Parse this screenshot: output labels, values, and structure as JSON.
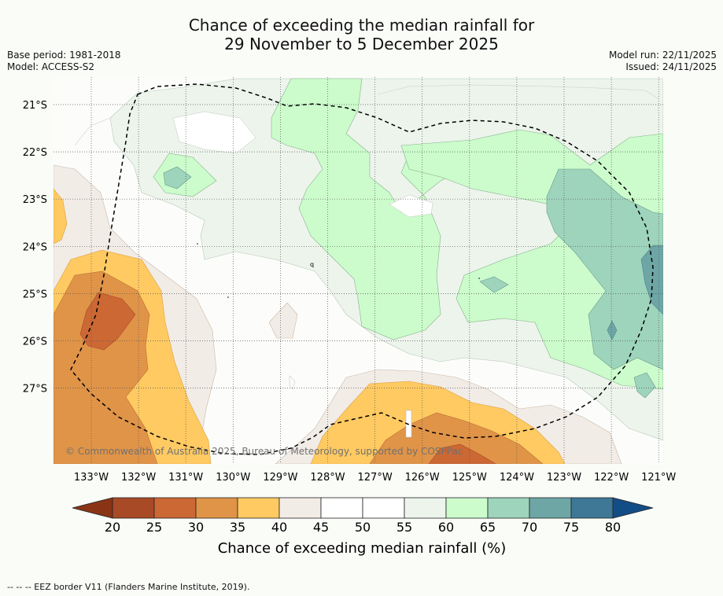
{
  "title": {
    "line1": "Chance of exceeding the median rainfall for",
    "line2": "29 November to 5 December 2025"
  },
  "meta": {
    "base_period": "Base period: 1981-2018",
    "model": "Model: ACCESS-S2",
    "model_run": "Model run: 22/11/2025",
    "issued": "Issued: 24/11/2025"
  },
  "map": {
    "lon_labels": [
      "133°W",
      "132°W",
      "131°W",
      "130°W",
      "129°W",
      "128°W",
      "127°W",
      "126°W",
      "125°W",
      "124°W",
      "123°W",
      "122°W",
      "121°W"
    ],
    "lat_labels": [
      "21°S",
      "22°S",
      "23°S",
      "24°S",
      "25°S",
      "26°S",
      "27°S"
    ],
    "copyright": "© Commonwealth of Australia 2025, Bureau of Meteorology, supported by COSPPac"
  },
  "colorbar": {
    "ticks": [
      "20",
      "25",
      "30",
      "35",
      "40",
      "45",
      "50",
      "55",
      "60",
      "65",
      "70",
      "75",
      "80"
    ],
    "colors": [
      "#a84a26",
      "#cc6834",
      "#e09448",
      "#ffca62",
      "#f2ece6",
      "#ffffff",
      "#ffffff",
      "#ecf4ec",
      "#ccfccc",
      "#9ed4bc",
      "#6ea6a6",
      "#3e7896"
    ],
    "under_color": "#8a3416",
    "over_color": "#134d86",
    "label": "Chance of exceeding median rainfall (%)"
  },
  "footer": "--  --  -- EEZ border V11 (Flanders Marine Institute, 2019)."
}
